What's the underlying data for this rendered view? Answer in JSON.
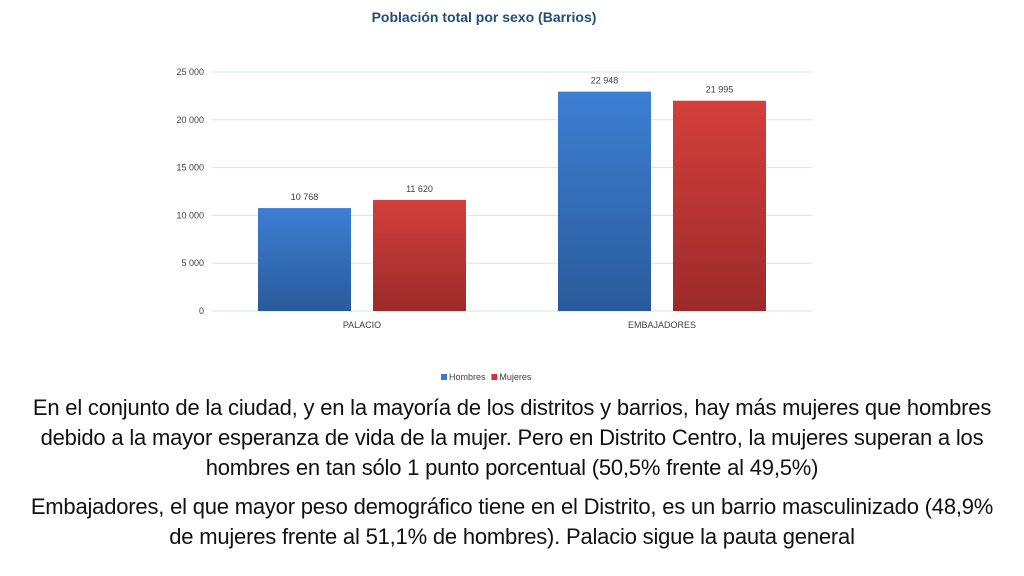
{
  "chart_data": {
    "type": "bar",
    "title": "Población total por sexo (Barrios)",
    "categories": [
      "PALACIO",
      "EMBAJADORES"
    ],
    "series": [
      {
        "name": "Hombres",
        "values": [
          10768,
          22948
        ],
        "labels": [
          "10 768",
          "22 948"
        ],
        "color": "#3a78c9"
      },
      {
        "name": "Mujeres",
        "values": [
          11620,
          21995
        ],
        "labels": [
          "11 620",
          "21 995"
        ],
        "color": "#c93838"
      }
    ],
    "ylim": [
      0,
      25000
    ],
    "yticks": [
      0,
      5000,
      10000,
      15000,
      20000,
      25000
    ],
    "ytick_labels": [
      "0",
      "5 000",
      "10 000",
      "15 000",
      "20 000",
      "25 000"
    ],
    "xlabel": "",
    "ylabel": "",
    "grid": true,
    "legend_position": "bottom",
    "title_color": "#1f4e79"
  },
  "text": {
    "paragraph_1": "En el conjunto de la ciudad, y en la mayoría de los distritos y barrios, hay más mujeres que hombres debido a la mayor esperanza de vida de la mujer. Pero en Distrito Centro, la mujeres superan a los hombres en tan sólo 1 punto porcentual (50,5% frente al 49,5%)",
    "paragraph_2": "Embajadores, el que mayor peso demográfico tiene en el Distrito, es un barrio masculinizado (48,9% de mujeres frente al 51,1% de hombres). Palacio sigue la pauta general"
  }
}
